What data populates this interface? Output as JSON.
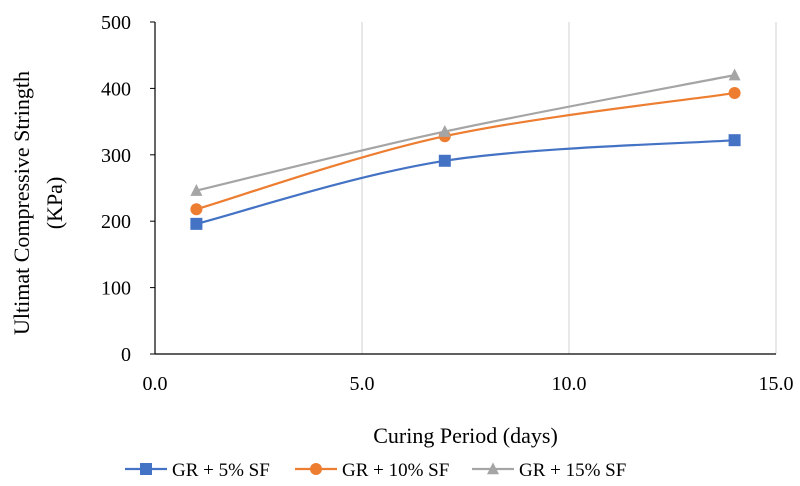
{
  "chart_data": {
    "type": "line",
    "xlabel": "Curing Period (days)",
    "ylabel": "Ultimat Compressive Stringth (KPa)",
    "xlim": [
      0,
      15
    ],
    "ylim": [
      0,
      500
    ],
    "xticks": [
      "0.0",
      "5.0",
      "10.0",
      "15.0"
    ],
    "yticks": [
      "0",
      "100",
      "200",
      "300",
      "400",
      "500"
    ],
    "grid": "vertical",
    "legend_position": "bottom",
    "series": [
      {
        "name": "GR + 5% SF",
        "color": "#4472C4",
        "marker": "square",
        "x": [
          1,
          7,
          14
        ],
        "y": [
          196,
          291,
          322
        ]
      },
      {
        "name": "GR + 10% SF",
        "color": "#ED7D31",
        "marker": "circle",
        "x": [
          1,
          7,
          14
        ],
        "y": [
          218,
          328,
          393
        ]
      },
      {
        "name": "GR + 15% SF",
        "color": "#A5A5A5",
        "marker": "triangle",
        "x": [
          1,
          7,
          14
        ],
        "y": [
          246,
          335,
          420
        ]
      }
    ]
  }
}
